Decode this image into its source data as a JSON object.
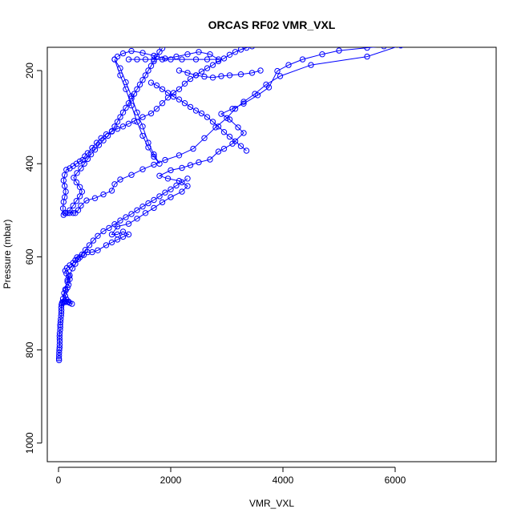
{
  "chart_data": {
    "type": "line",
    "title": "ORCAS RF02 VMR_VXL",
    "xlabel": "VMR_VXL",
    "ylabel": "Pressure (mbar)",
    "xlim": [
      -200,
      7800
    ],
    "ylim": [
      1040,
      150
    ],
    "y_reversed": true,
    "grid": false,
    "legend": "none",
    "x_ticks": [
      0,
      2000,
      4000,
      6000
    ],
    "y_ticks": [
      200,
      400,
      600,
      800,
      1000
    ],
    "x_tick_labels": [
      "0",
      "2000",
      "4000",
      "6000"
    ],
    "y_tick_labels": [
      "200",
      "400",
      "600",
      "800",
      "1000"
    ],
    "series": [
      {
        "color": "#0000ff",
        "marker": "open-circle",
        "points": [
          [
            10,
            822
          ],
          [
            8,
            818
          ],
          [
            10,
            812
          ],
          [
            12,
            806
          ],
          [
            15,
            800
          ],
          [
            18,
            795
          ],
          [
            20,
            789
          ],
          [
            22,
            782
          ],
          [
            20,
            776
          ],
          [
            18,
            770
          ],
          [
            22,
            764
          ],
          [
            28,
            757
          ],
          [
            32,
            751
          ],
          [
            30,
            746
          ],
          [
            35,
            740
          ],
          [
            40,
            734
          ],
          [
            45,
            727
          ],
          [
            50,
            721
          ],
          [
            52,
            715
          ],
          [
            48,
            709
          ],
          [
            55,
            703
          ],
          [
            70,
            697
          ],
          [
            90,
            697
          ],
          [
            110,
            697
          ],
          [
            130,
            697
          ],
          [
            160,
            697
          ],
          [
            200,
            699
          ],
          [
            240,
            701
          ],
          [
            180,
            696
          ],
          [
            140,
            691
          ],
          [
            120,
            684
          ],
          [
            100,
            678
          ],
          [
            130,
            672
          ],
          [
            160,
            666
          ],
          [
            180,
            660
          ],
          [
            160,
            654
          ],
          [
            200,
            648
          ],
          [
            180,
            642
          ],
          [
            140,
            636
          ],
          [
            120,
            630
          ],
          [
            150,
            624
          ],
          [
            200,
            618
          ],
          [
            260,
            613
          ],
          [
            300,
            607
          ],
          [
            330,
            601
          ],
          [
            380,
            601
          ],
          [
            450,
            596
          ],
          [
            520,
            590
          ],
          [
            600,
            590
          ],
          [
            700,
            586
          ],
          [
            850,
            575
          ],
          [
            950,
            569
          ],
          [
            1050,
            563
          ],
          [
            1150,
            557
          ],
          [
            1250,
            552
          ],
          [
            1150,
            546
          ],
          [
            1050,
            552
          ],
          [
            950,
            552
          ],
          [
            1050,
            535
          ],
          [
            1250,
            529
          ],
          [
            1400,
            518
          ],
          [
            1550,
            506
          ],
          [
            1700,
            495
          ],
          [
            1850,
            483
          ],
          [
            2000,
            472
          ],
          [
            2200,
            460
          ],
          [
            2300,
            448
          ],
          [
            2150,
            437
          ],
          [
            1950,
            432
          ],
          [
            1800,
            426
          ],
          [
            2000,
            414
          ],
          [
            2200,
            409
          ],
          [
            2350,
            403
          ],
          [
            2500,
            397
          ],
          [
            2700,
            391
          ],
          [
            2850,
            374
          ],
          [
            2950,
            368
          ],
          [
            3100,
            357
          ],
          [
            3300,
            334
          ],
          [
            3200,
            322
          ],
          [
            3050,
            305
          ],
          [
            2900,
            293
          ],
          [
            3100,
            282
          ],
          [
            3300,
            271
          ],
          [
            3550,
            253
          ],
          [
            3750,
            236
          ],
          [
            3900,
            201
          ],
          [
            4100,
            188
          ],
          [
            4350,
            176
          ],
          [
            4700,
            165
          ],
          [
            5000,
            157
          ],
          [
            5500,
            151
          ],
          [
            5800,
            148
          ],
          [
            6100,
            146
          ],
          [
            5500,
            170
          ],
          [
            4500,
            188
          ],
          [
            3950,
            212
          ],
          [
            3700,
            230
          ],
          [
            3500,
            250
          ],
          [
            3300,
            267
          ],
          [
            3150,
            282
          ],
          [
            3000,
            302
          ],
          [
            2800,
            322
          ],
          [
            2600,
            345
          ],
          [
            2400,
            368
          ],
          [
            2150,
            382
          ],
          [
            1900,
            392
          ],
          [
            1700,
            402
          ],
          [
            1500,
            412
          ],
          [
            1300,
            424
          ],
          [
            1100,
            434
          ],
          [
            1000,
            444
          ],
          [
            950,
            458
          ],
          [
            800,
            466
          ],
          [
            650,
            474
          ],
          [
            500,
            479
          ],
          [
            400,
            490
          ],
          [
            350,
            500
          ],
          [
            300,
            506
          ],
          [
            260,
            506
          ],
          [
            200,
            506
          ],
          [
            160,
            506
          ],
          [
            130,
            506
          ],
          [
            110,
            506
          ],
          [
            90,
            510
          ],
          [
            80,
            496
          ],
          [
            90,
            482
          ],
          [
            110,
            472
          ],
          [
            130,
            460
          ],
          [
            110,
            448
          ],
          [
            90,
            436
          ],
          [
            110,
            424
          ],
          [
            140,
            413
          ],
          [
            200,
            410
          ],
          [
            260,
            405
          ],
          [
            320,
            400
          ],
          [
            380,
            395
          ],
          [
            430,
            392
          ],
          [
            470,
            384
          ],
          [
            520,
            377
          ],
          [
            600,
            366
          ],
          [
            680,
            355
          ],
          [
            760,
            345
          ],
          [
            850,
            337
          ],
          [
            950,
            331
          ],
          [
            1050,
            325
          ],
          [
            1150,
            320
          ],
          [
            1250,
            314
          ],
          [
            1350,
            308
          ],
          [
            1500,
            300
          ],
          [
            1650,
            292
          ],
          [
            1750,
            282
          ],
          [
            1850,
            270
          ],
          [
            1950,
            258
          ],
          [
            2050,
            248
          ],
          [
            2150,
            240
          ],
          [
            2250,
            228
          ],
          [
            2350,
            218
          ],
          [
            2450,
            210
          ],
          [
            2550,
            202
          ],
          [
            2650,
            195
          ],
          [
            2750,
            188
          ],
          [
            2850,
            180
          ],
          [
            2950,
            174
          ],
          [
            3050,
            166
          ],
          [
            3150,
            160
          ],
          [
            3250,
            155
          ],
          [
            3350,
            151
          ],
          [
            3450,
            148
          ]
        ]
      },
      {
        "color": "#0000ff",
        "marker": "open-circle",
        "points": [
          [
            60,
            700
          ],
          [
            80,
            690
          ],
          [
            120,
            670
          ],
          [
            160,
            650
          ],
          [
            200,
            640
          ],
          [
            250,
            625
          ],
          [
            300,
            615
          ],
          [
            350,
            605
          ],
          [
            420,
            595
          ],
          [
            480,
            585
          ],
          [
            550,
            575
          ],
          [
            620,
            565
          ],
          [
            700,
            555
          ],
          [
            800,
            545
          ],
          [
            900,
            538
          ],
          [
            1000,
            530
          ],
          [
            1100,
            522
          ],
          [
            1200,
            515
          ],
          [
            1300,
            508
          ],
          [
            1400,
            500
          ],
          [
            1500,
            492
          ],
          [
            1600,
            485
          ],
          [
            1700,
            478
          ],
          [
            1800,
            470
          ],
          [
            1900,
            462
          ],
          [
            2000,
            455
          ],
          [
            2100,
            447
          ],
          [
            2200,
            440
          ],
          [
            2300,
            432
          ]
        ]
      },
      {
        "color": "#0000ff",
        "marker": "open-circle",
        "points": [
          [
            200,
            500
          ],
          [
            260,
            490
          ],
          [
            320,
            480
          ],
          [
            380,
            470
          ],
          [
            420,
            460
          ],
          [
            380,
            450
          ],
          [
            320,
            440
          ],
          [
            270,
            430
          ],
          [
            330,
            420
          ],
          [
            400,
            410
          ],
          [
            460,
            400
          ],
          [
            520,
            390
          ],
          [
            580,
            380
          ],
          [
            650,
            370
          ],
          [
            720,
            360
          ],
          [
            800,
            350
          ],
          [
            880,
            340
          ],
          [
            950,
            330
          ],
          [
            1000,
            320
          ],
          [
            1050,
            310
          ],
          [
            1100,
            300
          ],
          [
            1150,
            290
          ],
          [
            1200,
            280
          ],
          [
            1250,
            270
          ],
          [
            1300,
            260
          ],
          [
            1350,
            250
          ],
          [
            1400,
            240
          ],
          [
            1450,
            230
          ],
          [
            1500,
            220
          ],
          [
            1550,
            210
          ],
          [
            1600,
            200
          ],
          [
            1650,
            190
          ],
          [
            1700,
            180
          ],
          [
            1750,
            170
          ],
          [
            1800,
            160
          ],
          [
            1850,
            152
          ]
        ]
      },
      {
        "color": "#0000ff",
        "marker": "open-circle",
        "points": [
          [
            1000,
            176
          ],
          [
            1100,
            210
          ],
          [
            1200,
            240
          ],
          [
            1300,
            275
          ],
          [
            1400,
            310
          ],
          [
            1500,
            340
          ],
          [
            1600,
            365
          ],
          [
            1700,
            385
          ],
          [
            1800,
            400
          ],
          [
            1700,
            380
          ],
          [
            1600,
            355
          ],
          [
            1500,
            320
          ],
          [
            1400,
            290
          ],
          [
            1300,
            255
          ],
          [
            1200,
            225
          ],
          [
            1100,
            195
          ],
          [
            1000,
            176
          ]
        ]
      },
      {
        "color": "#0000ff",
        "marker": "open-circle",
        "points": [
          [
            1250,
            176
          ],
          [
            1400,
            176
          ],
          [
            1550,
            176
          ],
          [
            1700,
            176
          ],
          [
            1850,
            176
          ],
          [
            2000,
            176
          ],
          [
            2200,
            176
          ],
          [
            2450,
            176
          ],
          [
            2650,
            176
          ],
          [
            2850,
            176
          ],
          [
            2700,
            165
          ],
          [
            2500,
            160
          ],
          [
            2300,
            165
          ],
          [
            2100,
            170
          ],
          [
            1900,
            174
          ],
          [
            1700,
            168
          ],
          [
            1500,
            162
          ],
          [
            1300,
            158
          ],
          [
            1150,
            163
          ],
          [
            1050,
            170
          ]
        ]
      },
      {
        "color": "#0000ff",
        "marker": "open-circle",
        "points": [
          [
            1650,
            226
          ],
          [
            1750,
            232
          ],
          [
            1850,
            240
          ],
          [
            1950,
            248
          ],
          [
            2050,
            256
          ],
          [
            2150,
            262
          ],
          [
            2250,
            270
          ],
          [
            2350,
            278
          ],
          [
            2450,
            286
          ],
          [
            2550,
            292
          ],
          [
            2650,
            300
          ],
          [
            2750,
            310
          ],
          [
            2850,
            320
          ],
          [
            2950,
            332
          ],
          [
            3050,
            342
          ],
          [
            3150,
            352
          ],
          [
            3250,
            362
          ],
          [
            3350,
            372
          ]
        ]
      },
      {
        "color": "#0000ff",
        "marker": "open-circle",
        "points": [
          [
            2150,
            200
          ],
          [
            2300,
            205
          ],
          [
            2450,
            210
          ],
          [
            2600,
            213
          ],
          [
            2750,
            215
          ],
          [
            2900,
            212
          ],
          [
            3050,
            210
          ],
          [
            3250,
            208
          ],
          [
            3450,
            205
          ],
          [
            3600,
            200
          ]
        ]
      }
    ]
  }
}
